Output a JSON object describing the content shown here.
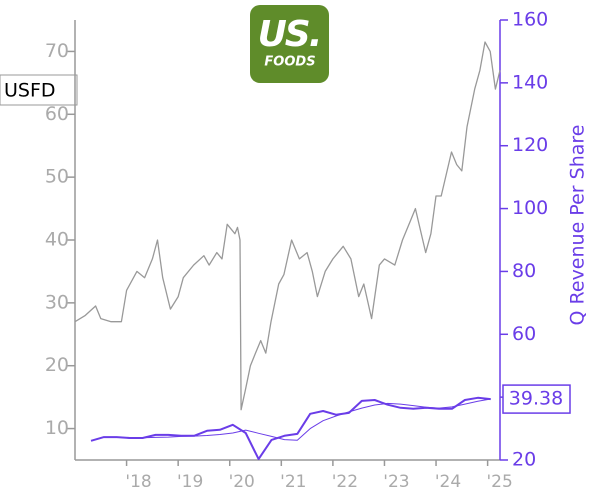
{
  "chart_data": {
    "type": "line",
    "ticker": "USFD",
    "logo_text": [
      "US.",
      "FOODS"
    ],
    "y2_label": "Q Revenue Per Share",
    "last_value": 39.38,
    "xlim": [
      2017.0,
      2025.24
    ],
    "xticks": [
      {
        "value": 2018,
        "label": "'18"
      },
      {
        "value": 2019,
        "label": "'19"
      },
      {
        "value": 2020,
        "label": "'20"
      },
      {
        "value": 2021,
        "label": "'21"
      },
      {
        "value": 2022,
        "label": "'22"
      },
      {
        "value": 2023,
        "label": "'23"
      },
      {
        "value": 2024,
        "label": "'24"
      },
      {
        "value": 2025,
        "label": "'25"
      }
    ],
    "ylim": [
      5,
      75
    ],
    "yticks": [
      10,
      20,
      30,
      40,
      50,
      60,
      70
    ],
    "y2lim": [
      20,
      160
    ],
    "y2ticks": [
      20,
      40,
      60,
      80,
      100,
      120,
      140,
      160
    ],
    "series": [
      {
        "color": "#999999",
        "axis": "y",
        "x": [
          2017.0,
          2017.2,
          2017.4,
          2017.5,
          2017.7,
          2017.9,
          2018.0,
          2018.2,
          2018.35,
          2018.5,
          2018.6,
          2018.7,
          2018.85,
          2019.0,
          2019.1,
          2019.3,
          2019.5,
          2019.6,
          2019.75,
          2019.85,
          2019.95,
          2020.1,
          2020.15,
          2020.2,
          2020.22,
          2020.3,
          2020.4,
          2020.5,
          2020.6,
          2020.7,
          2020.8,
          2020.95,
          2021.05,
          2021.2,
          2021.35,
          2021.5,
          2021.6,
          2021.7,
          2021.85,
          2022.0,
          2022.2,
          2022.35,
          2022.5,
          2022.6,
          2022.75,
          2022.9,
          2023.0,
          2023.2,
          2023.35,
          2023.5,
          2023.6,
          2023.8,
          2023.9,
          2024.0,
          2024.1,
          2024.3,
          2024.4,
          2024.5,
          2024.6,
          2024.75,
          2024.85,
          2024.95,
          2025.05,
          2025.15,
          2025.24
        ],
        "values": [
          27,
          28,
          29.5,
          27.5,
          27,
          27,
          32,
          35,
          34,
          37,
          40,
          34,
          29,
          31,
          34,
          36,
          37.5,
          36,
          38,
          37,
          42.5,
          41,
          42,
          40,
          13,
          16,
          20,
          22,
          24,
          22,
          27,
          33,
          34.5,
          40,
          37,
          38,
          35,
          31,
          35,
          37,
          39,
          37,
          31,
          33,
          27.5,
          36,
          37,
          36,
          40,
          43,
          45,
          38,
          41,
          47,
          47,
          54,
          52,
          51,
          58,
          64,
          67,
          71.5,
          70,
          64,
          67
        ]
      },
      {
        "color": "#6a3de8",
        "axis": "y2",
        "x": [
          2017.31,
          2017.56,
          2017.81,
          2018.06,
          2018.31,
          2018.56,
          2018.81,
          2019.06,
          2019.31,
          2019.56,
          2019.81,
          2020.06,
          2020.31,
          2020.56,
          2020.81,
          2021.06,
          2021.31,
          2021.56,
          2021.81,
          2022.06,
          2022.31,
          2022.56,
          2022.81,
          2023.06,
          2023.31,
          2023.56,
          2023.81,
          2024.06,
          2024.31,
          2024.56,
          2024.81,
          2025.06
        ],
        "values": [
          26.1,
          27.3,
          27.3,
          27,
          27,
          28,
          28,
          27.7,
          27.7,
          29.3,
          29.6,
          31.2,
          28.6,
          20.3,
          26.4,
          27.7,
          28.3,
          34.7,
          35.6,
          34.4,
          35,
          38.8,
          39.1,
          37.6,
          36.6,
          36.3,
          36.6,
          36.3,
          36.3,
          39.1,
          39.8,
          39.38
        ]
      },
      {
        "color": "#6a3de8",
        "axis": "y2",
        "x": [
          2017.31,
          2017.56,
          2017.81,
          2018.06,
          2018.31,
          2018.56,
          2018.81,
          2019.06,
          2019.31,
          2019.56,
          2019.81,
          2020.06,
          2020.31,
          2020.56,
          2020.81,
          2021.06,
          2021.31,
          2021.56,
          2021.81,
          2022.06,
          2022.31,
          2022.56,
          2022.81,
          2023.06,
          2023.31,
          2023.56,
          2023.81,
          2024.06,
          2024.31,
          2024.56,
          2024.81,
          2025.06
        ],
        "values": [
          null,
          null,
          null,
          null,
          27.1,
          27.2,
          27.3,
          27.5,
          27.6,
          27.8,
          28.1,
          28.6,
          29.5,
          28.5,
          27.5,
          26.5,
          26.3,
          30,
          32.5,
          34,
          35.3,
          36.5,
          37.5,
          38,
          37.8,
          37.3,
          36.8,
          36.5,
          36.9,
          37.8,
          38.7,
          39.4
        ]
      }
    ]
  }
}
